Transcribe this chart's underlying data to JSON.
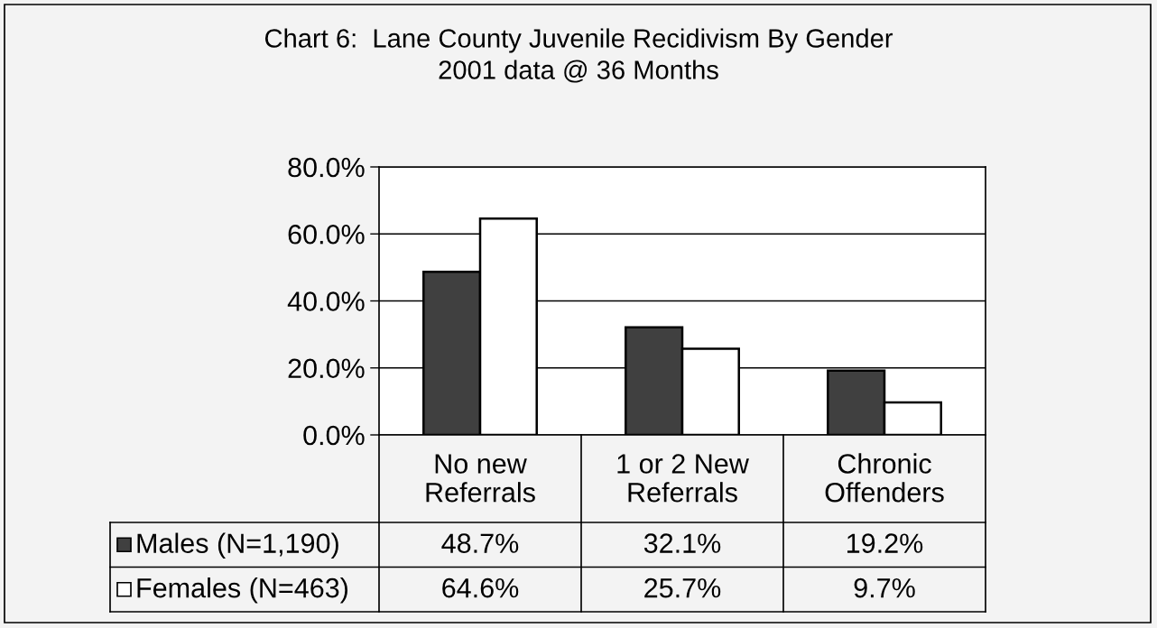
{
  "chart_data": {
    "type": "bar",
    "title": "Chart 6:  Lane County Juvenile Recidivism By Gender",
    "subtitle": "2001 data @ 36 Months",
    "categories": [
      "No new\nReferrals",
      "1 or 2 New\nReferrals",
      "Chronic\nOffenders"
    ],
    "series": [
      {
        "name": "Males (N=1,190)",
        "color": "#404040",
        "values": [
          48.7,
          32.1,
          19.2
        ],
        "value_labels": [
          "48.7%",
          "32.1%",
          "19.2%"
        ]
      },
      {
        "name": "Females (N=463)",
        "color": "#ffffff",
        "values": [
          64.6,
          25.7,
          9.7
        ],
        "value_labels": [
          "64.6%",
          "25.7%",
          "9.7%"
        ]
      }
    ],
    "ylim": [
      0,
      80
    ],
    "yticks": [
      {
        "value": 0,
        "label": "0.0%"
      },
      {
        "value": 20,
        "label": "20.0%"
      },
      {
        "value": 40,
        "label": "40.0%"
      },
      {
        "value": 60,
        "label": "60.0%"
      },
      {
        "value": 80,
        "label": "80.0%"
      }
    ],
    "grid": "y",
    "legend": "bottom"
  }
}
